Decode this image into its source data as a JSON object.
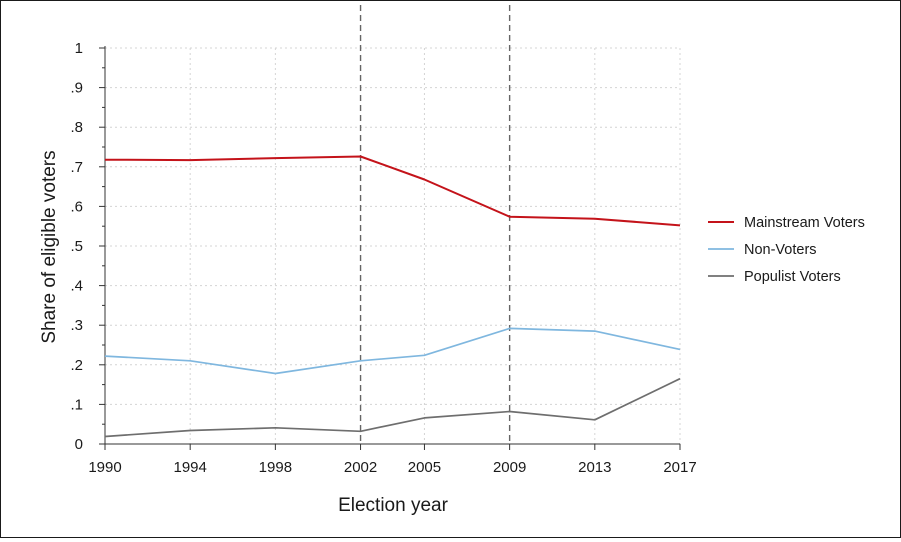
{
  "chart_data": {
    "type": "line",
    "title": "",
    "xlabel": "Election year",
    "ylabel": "Share of eligible voters",
    "x": [
      1990,
      1994,
      1998,
      2002,
      2005,
      2009,
      2013,
      2017
    ],
    "x_tick_labels": [
      "1990",
      "1994",
      "1998",
      "2002",
      "2005",
      "2009",
      "2013",
      "2017"
    ],
    "y_ticks": [
      0,
      0.1,
      0.2,
      0.3,
      0.4,
      0.5,
      0.6,
      0.7,
      0.8,
      0.9,
      1
    ],
    "y_tick_labels": [
      "0",
      ".1",
      ".2",
      ".3",
      ".4",
      ".5",
      ".6",
      ".7",
      ".8",
      ".9",
      "1"
    ],
    "xlim": [
      1990,
      2017
    ],
    "ylim": [
      0,
      1
    ],
    "grid": true,
    "vertical_reference_lines": [
      2002,
      2009
    ],
    "legend_position": "right",
    "series": [
      {
        "name": "Mainstream Voters",
        "color": "#c4131a",
        "values": [
          0.718,
          0.717,
          0.722,
          0.726,
          0.668,
          0.574,
          0.569,
          0.552
        ]
      },
      {
        "name": "Non-Voters",
        "color": "#7fb7df",
        "values": [
          0.222,
          0.21,
          0.178,
          0.21,
          0.224,
          0.292,
          0.285,
          0.239
        ]
      },
      {
        "name": "Populist Voters",
        "color": "#6e6e6e",
        "values": [
          0.019,
          0.034,
          0.041,
          0.032,
          0.066,
          0.082,
          0.061,
          0.165
        ]
      }
    ]
  }
}
